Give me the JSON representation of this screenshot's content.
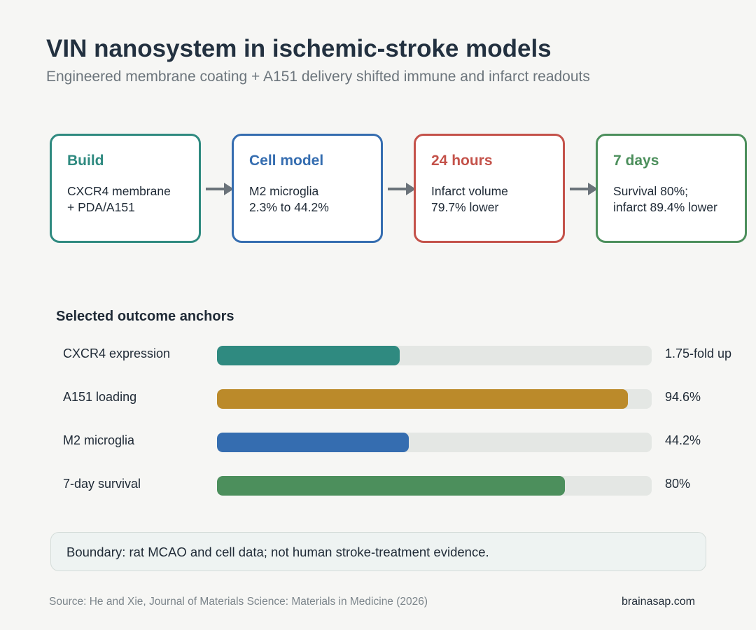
{
  "title": "VIN nanosystem in ischemic-stroke models",
  "subtitle": "Engineered membrane coating + A151 delivery shifted immune and infarct readouts",
  "steps": [
    {
      "title": "Build",
      "line1": "CXCR4 membrane",
      "line2": "+ PDA/A151",
      "color": "#2f8a80"
    },
    {
      "title": "Cell model",
      "line1": "M2 microglia",
      "line2": "2.3% to 44.2%",
      "color": "#356db0"
    },
    {
      "title": "24 hours",
      "line1": "Infarct volume",
      "line2": "79.7% lower",
      "color": "#c4524a"
    },
    {
      "title": "7 days",
      "line1": "Survival 80%;",
      "line2": "infarct 89.4% lower",
      "color": "#4c8f5c"
    }
  ],
  "arrow_color": "#6b737a",
  "chart_data": {
    "type": "bar",
    "orientation": "horizontal",
    "title": "Selected outcome anchors",
    "categories": [
      "CXCR4 expression",
      "A151 loading",
      "M2 microglia",
      "7-day survival"
    ],
    "value_labels": [
      "1.75-fold up",
      "94.6%",
      "44.2%",
      "80%"
    ],
    "fill_fractions": [
      0.42,
      0.946,
      0.442,
      0.8
    ],
    "colors": [
      "#2f8a80",
      "#bb8a2a",
      "#356db0",
      "#4c8f5c"
    ],
    "track_color": "#e4e7e4"
  },
  "note": "Boundary: rat MCAO and cell data; not human stroke-treatment evidence.",
  "source": "Source: He and Xie, Journal of Materials Science: Materials in Medicine (2026)",
  "site": "brainasap.com"
}
